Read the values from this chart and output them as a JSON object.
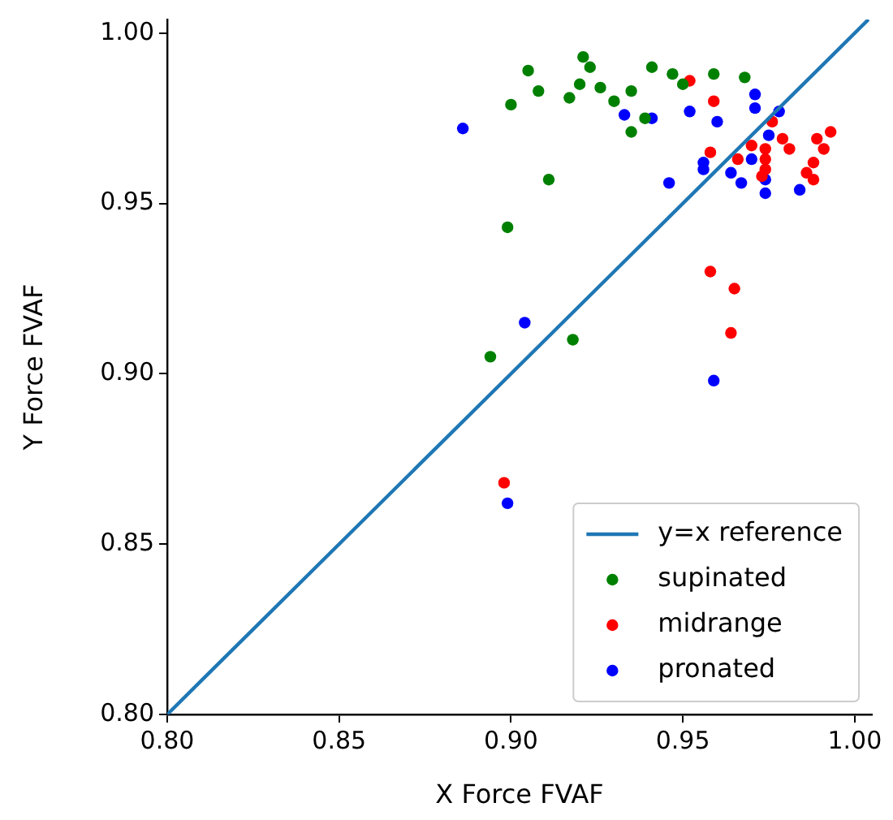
{
  "chart_data": {
    "type": "scatter",
    "xlabel": "X Force FVAF",
    "ylabel": "Y Force FVAF",
    "xlim": [
      0.8,
      1.005
    ],
    "ylim": [
      0.8,
      1.004
    ],
    "xticks": [
      {
        "value": 0.8,
        "label": "0.80"
      },
      {
        "value": 0.85,
        "label": "0.85"
      },
      {
        "value": 0.9,
        "label": "0.90"
      },
      {
        "value": 0.95,
        "label": "0.95"
      },
      {
        "value": 1.0,
        "label": "1.00"
      }
    ],
    "yticks": [
      {
        "value": 0.8,
        "label": "0.80"
      },
      {
        "value": 0.85,
        "label": "0.85"
      },
      {
        "value": 0.9,
        "label": "0.90"
      },
      {
        "value": 0.95,
        "label": "0.95"
      },
      {
        "value": 1.0,
        "label": "1.00"
      }
    ],
    "grid": false,
    "legend": "bottom right",
    "marker": "circle",
    "series": [
      {
        "name": "y=x reference",
        "type": "line",
        "color": "#1f77b4",
        "line_style": "solid",
        "marker": "none",
        "x": [
          0.8,
          1.004
        ],
        "values": [
          0.8,
          1.004
        ]
      },
      {
        "name": "supinated",
        "color": "#008000",
        "x": [
          0.905,
          0.921,
          0.923,
          0.908,
          0.92,
          0.926,
          0.9,
          0.917,
          0.93,
          0.935,
          0.941,
          0.947,
          0.95,
          0.939,
          0.935,
          0.911,
          0.959,
          0.968,
          0.899,
          0.894,
          0.918
        ],
        "values": [
          0.989,
          0.993,
          0.99,
          0.983,
          0.985,
          0.984,
          0.979,
          0.981,
          0.98,
          0.983,
          0.99,
          0.988,
          0.985,
          0.975,
          0.971,
          0.957,
          0.988,
          0.987,
          0.943,
          0.905,
          0.91
        ]
      },
      {
        "name": "midrange",
        "color": "#ff0000",
        "x": [
          0.952,
          0.959,
          0.976,
          0.979,
          0.981,
          0.989,
          0.993,
          0.991,
          0.97,
          0.974,
          0.974,
          0.974,
          0.973,
          0.966,
          0.958,
          0.988,
          0.986,
          0.988,
          0.958,
          0.965,
          0.964,
          0.898
        ],
        "values": [
          0.986,
          0.98,
          0.974,
          0.969,
          0.966,
          0.969,
          0.971,
          0.966,
          0.967,
          0.966,
          0.963,
          0.96,
          0.958,
          0.963,
          0.965,
          0.962,
          0.959,
          0.957,
          0.93,
          0.925,
          0.912,
          0.868
        ]
      },
      {
        "name": "pronated",
        "color": "#0000ff",
        "x": [
          0.886,
          0.933,
          0.941,
          0.946,
          0.971,
          0.971,
          0.952,
          0.96,
          0.978,
          0.975,
          0.956,
          0.956,
          0.97,
          0.964,
          0.967,
          0.974,
          0.974,
          0.984,
          0.904,
          0.959,
          0.899
        ],
        "values": [
          0.972,
          0.976,
          0.975,
          0.956,
          0.982,
          0.978,
          0.977,
          0.974,
          0.977,
          0.97,
          0.962,
          0.96,
          0.963,
          0.959,
          0.956,
          0.957,
          0.953,
          0.954,
          0.915,
          0.898,
          0.862
        ]
      }
    ]
  }
}
